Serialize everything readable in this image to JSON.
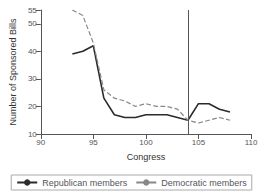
{
  "chart_data": {
    "type": "line",
    "xlabel": "Congress",
    "ylabel": "Number of Sponsored Bills",
    "x": [
      93,
      94,
      95,
      96,
      97,
      98,
      99,
      100,
      101,
      102,
      103,
      104,
      105,
      106,
      107,
      108
    ],
    "series": [
      {
        "name": "Republican members",
        "color": "#2b2b2b",
        "line_style": "solid",
        "values": [
          39,
          40,
          42,
          23,
          17,
          16,
          16,
          17,
          17,
          17,
          16,
          15,
          21,
          21,
          19,
          18
        ]
      },
      {
        "name": "Democratic members",
        "color": "#888888",
        "line_style": "dashed",
        "values": [
          55,
          53,
          43,
          26,
          23,
          22,
          20,
          21,
          20,
          20,
          19,
          15,
          14,
          15,
          16,
          15
        ]
      }
    ],
    "vlines": [
      104
    ],
    "xlim": [
      90,
      110
    ],
    "xticks": [
      90,
      95,
      100,
      105,
      110
    ],
    "ylim": [
      10,
      55
    ],
    "yticks": [
      10,
      20,
      30,
      40,
      50
    ],
    "grid": false,
    "legend": "bottom"
  }
}
